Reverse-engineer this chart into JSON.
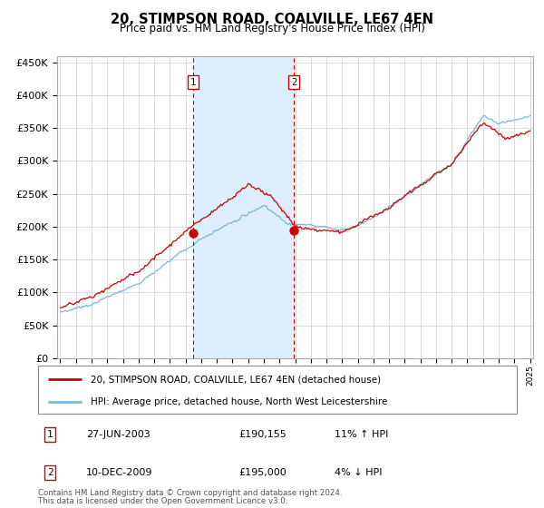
{
  "title": "20, STIMPSON ROAD, COALVILLE, LE67 4EN",
  "subtitle": "Price paid vs. HM Land Registry's House Price Index (HPI)",
  "legend_line1": "20, STIMPSON ROAD, COALVILLE, LE67 4EN (detached house)",
  "legend_line2": "HPI: Average price, detached house, North West Leicestershire",
  "transaction1_label": "1",
  "transaction1_date": "27-JUN-2003",
  "transaction1_price": "£190,155",
  "transaction1_hpi": "11% ↑ HPI",
  "transaction2_label": "2",
  "transaction2_date": "10-DEC-2009",
  "transaction2_price": "£195,000",
  "transaction2_hpi": "4% ↓ HPI",
  "footnote1": "Contains HM Land Registry data © Crown copyright and database right 2024.",
  "footnote2": "This data is licensed under the Open Government Licence v3.0.",
  "hpi_color": "#7ab8d9",
  "price_color": "#cc0000",
  "marker_color": "#cc0000",
  "vline_color": "#cc0000",
  "shade_color": "#ddeeff",
  "ylim_max": 460000,
  "ylim_min": 0,
  "transaction1_x": 2003.49,
  "transaction2_x": 2009.92,
  "start_year": 1995,
  "end_year": 2025
}
